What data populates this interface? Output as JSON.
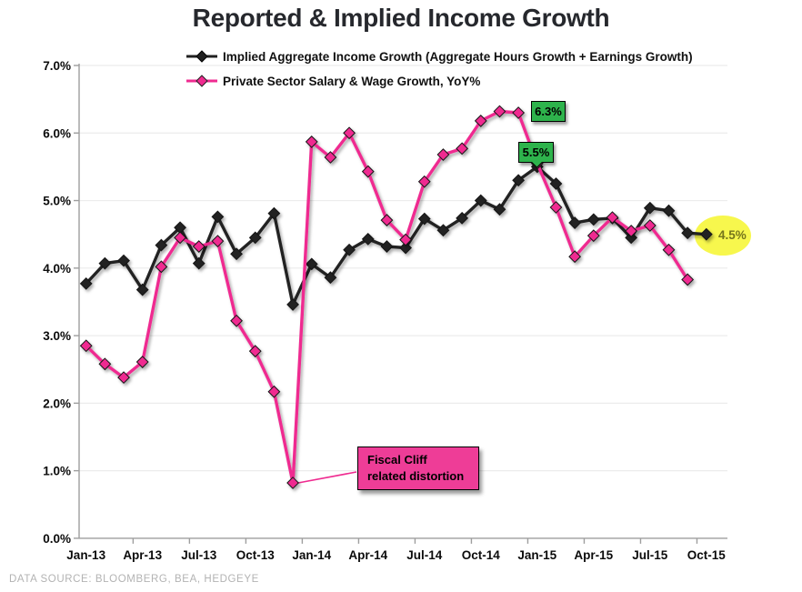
{
  "title": "Reported & Implied Income Growth",
  "source": "DATA SOURCE: BLOOMBERG, BEA, HEDGEYE",
  "colors": {
    "implied_series": "#212121",
    "private_series": "#ef2b90",
    "green_label_bg": "#2eb34c",
    "yellow_ellipse": "#f6f63a",
    "yellow_label_text": "#76761c",
    "fiscal_box_bg": "#ee3d97",
    "grid": "#ececec",
    "axis": "#9e9e9e"
  },
  "annotations": {
    "pink_peak_label": "6.3%",
    "black_peak_label": "5.5%",
    "latest_label": "4.5%",
    "fiscal_cliff": {
      "line1": "Fiscal Cliff",
      "line2": "related distortion"
    }
  },
  "chart_data": {
    "type": "line",
    "title": "Reported & Implied Income Growth",
    "grid": true,
    "legend_position": "top",
    "ylim": [
      0,
      7
    ],
    "y_ticks": [
      "7.0%",
      "6.0%",
      "5.0%",
      "4.0%",
      "3.0%",
      "2.0%",
      "1.0%",
      "0.0%"
    ],
    "x_axis_labels": [
      "Jan-13",
      "Apr-13",
      "Jul-13",
      "Oct-13",
      "Jan-14",
      "Apr-14",
      "Jul-14",
      "Oct-14",
      "Jan-15",
      "Apr-15",
      "Jul-15",
      "Oct-15"
    ],
    "x": [
      "Jan-13",
      "Feb-13",
      "Mar-13",
      "Apr-13",
      "May-13",
      "Jun-13",
      "Jul-13",
      "Aug-13",
      "Sep-13",
      "Oct-13",
      "Nov-13",
      "Dec-13",
      "Jan-14",
      "Feb-14",
      "Mar-14",
      "Apr-14",
      "May-14",
      "Jun-14",
      "Jul-14",
      "Aug-14",
      "Sep-14",
      "Oct-14",
      "Nov-14",
      "Dec-14",
      "Jan-15",
      "Feb-15",
      "Mar-15",
      "Apr-15",
      "May-15",
      "Jun-15",
      "Jul-15",
      "Aug-15",
      "Sep-15",
      "Oct-15"
    ],
    "series": [
      {
        "name": "Implied Aggregate Income Growth (Aggregate Hours Growth + Earnings Growth)",
        "color": "#212121",
        "marker": "diamond",
        "values": [
          3.77,
          4.07,
          4.11,
          3.68,
          4.34,
          4.6,
          4.07,
          4.76,
          4.21,
          4.45,
          4.81,
          3.46,
          4.06,
          3.86,
          4.27,
          4.43,
          4.32,
          4.3,
          4.73,
          4.56,
          4.74,
          5.0,
          4.87,
          5.3,
          5.5,
          5.25,
          4.67,
          4.72,
          4.74,
          4.45,
          4.89,
          4.85,
          4.52,
          4.5
        ]
      },
      {
        "name": "Private Sector Salary & Wage Growth, YoY%",
        "color": "#ef2b90",
        "marker": "diamond",
        "values": [
          2.85,
          2.58,
          2.38,
          2.61,
          4.02,
          4.45,
          4.32,
          4.4,
          3.22,
          2.77,
          2.17,
          0.82,
          5.87,
          5.64,
          6.0,
          5.43,
          4.71,
          4.42,
          5.28,
          5.68,
          5.77,
          6.18,
          6.32,
          6.3,
          5.55,
          4.9,
          4.17,
          4.48,
          4.75,
          4.55,
          4.63,
          4.27,
          3.83,
          null
        ]
      }
    ],
    "annotations": [
      {
        "label": "6.3%",
        "style": "green-box",
        "series": "Private Sector Salary & Wage Growth, YoY%",
        "x": "Dec-14",
        "value": 6.3
      },
      {
        "label": "5.5%",
        "style": "green-box-pointer",
        "series": "Implied Aggregate Income Growth",
        "x": "Jan-15",
        "value": 5.5
      },
      {
        "label": "4.5%",
        "style": "yellow-ellipse",
        "series": "Implied Aggregate Income Growth",
        "x": "Oct-15",
        "value": 4.5
      },
      {
        "label": "Fiscal Cliff related distortion",
        "style": "pink-callout-box",
        "series": "Private Sector Salary & Wage Growth, YoY%",
        "x": "Dec-13",
        "value": 0.82
      }
    ]
  }
}
